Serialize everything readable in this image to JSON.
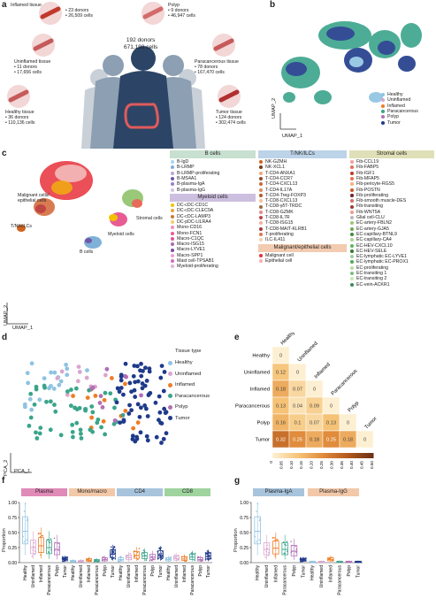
{
  "panel_letters": [
    "a",
    "b",
    "c",
    "d",
    "e",
    "f",
    "g"
  ],
  "panel_a": {
    "center": {
      "donors": "192 donors",
      "cells": "671,192 cells"
    },
    "tissues": [
      {
        "title": "Inflamed tissue",
        "donors": "23 donors",
        "cells": "26,509 cells",
        "color": "#c0392b"
      },
      {
        "title": "Polyp",
        "donors": "9 donors",
        "cells": "46,947 cells",
        "color": "#d36b6b"
      },
      {
        "title": "Uninflamed tissue",
        "donors": "11 donors",
        "cells": "17,656 cells",
        "color": "#c65a5a"
      },
      {
        "title": "Paracancerous tissue",
        "donors": "78 donors",
        "cells": "167,470 cells",
        "color": "#c65a5a"
      },
      {
        "title": "Healthy tissue",
        "donors": "36 donors",
        "cells": "110,136 cells",
        "color": "#c65a5a"
      },
      {
        "title": "Tumor tissue",
        "donors": "124 donors",
        "cells": "302,474 cells",
        "color": "#b03030"
      }
    ]
  },
  "panel_b": {
    "xlabel": "UMAP_1",
    "ylabel": "UMAP_2",
    "legend": [
      {
        "label": "Healthy",
        "color": "#8fc3e2"
      },
      {
        "label": "Uninflamed",
        "color": "#d9a6cf"
      },
      {
        "label": "Inflamed",
        "color": "#f07c25"
      },
      {
        "label": "Paracancerous",
        "color": "#3aa48a"
      },
      {
        "label": "Polyp",
        "color": "#b16fb6"
      },
      {
        "label": "Tumor",
        "color": "#1f3a8a"
      }
    ]
  },
  "panel_c": {
    "xlabel": "UMAP_1",
    "ylabel": "UMAP_2",
    "cluster_labels": {
      "malignant": "Malignant cells/ epithelial cells",
      "tnk": "T/NK/ILCs",
      "myeloid": "Myeloid cells",
      "stromal": "Stromal cells",
      "bcells": "B cells"
    },
    "groups": [
      {
        "title": "B cells",
        "color": "#c8e0cf",
        "items": [
          {
            "label": "B-IgD",
            "color": "#a8d6f0"
          },
          {
            "label": "B-LRMP",
            "color": "#7fb0d8"
          },
          {
            "label": "B-LRMP-proliferating",
            "color": "#b9a7d6"
          },
          {
            "label": "B-MS4A1",
            "color": "#6e59a8"
          },
          {
            "label": "B-plasma-IgA",
            "color": "#9c82c4"
          },
          {
            "label": "B-plasma-IgG",
            "color": "#d6c3e6"
          }
        ]
      },
      {
        "title": "Myeloid cells",
        "color": "#cdbfdf",
        "items": [
          {
            "label": "DC-cDC-CD1C",
            "color": "#f2c200"
          },
          {
            "label": "DC-cDC-CLEC9A",
            "color": "#e7a73a"
          },
          {
            "label": "DC-cDC-LAMP3",
            "color": "#c97b33"
          },
          {
            "label": "DC-pDC-LILRA4",
            "color": "#efd06a"
          },
          {
            "label": "Mono-CD16",
            "color": "#f28fbb"
          },
          {
            "label": "Mono-FCN1",
            "color": "#e85c94"
          },
          {
            "label": "Macro-C1QC",
            "color": "#d9579a"
          },
          {
            "label": "Macro-ISG15",
            "color": "#a86bb3"
          },
          {
            "label": "Macro-LYVE1",
            "color": "#7a4ea0"
          },
          {
            "label": "Macro-SPP1",
            "color": "#f2a0c8"
          },
          {
            "label": "Mast cell-TPSAB1",
            "color": "#cf6fbd"
          },
          {
            "label": "Myeloid-proliferating",
            "color": "#e0b3d8"
          }
        ]
      },
      {
        "title": "T/NK/ILCs",
        "color": "#bcd3e8",
        "items": [
          {
            "label": "NK-GZMH",
            "color": "#d0641f"
          },
          {
            "label": "NK-XCL1",
            "color": "#7a3b16"
          },
          {
            "label": "T-CD4-ANXA1",
            "color": "#f1a77a"
          },
          {
            "label": "T-CD4-CCR7",
            "color": "#8a4b2a"
          },
          {
            "label": "T-CD4-CXCL13",
            "color": "#c96a3a"
          },
          {
            "label": "T-CD4-IL17A",
            "color": "#e08a5a"
          },
          {
            "label": "T-CD4-Treg-FOXP3",
            "color": "#b55a2a"
          },
          {
            "label": "T-CD8-CXCL13",
            "color": "#f4c09a"
          },
          {
            "label": "T-CD8-γδT-TRDC",
            "color": "#9e6a3a"
          },
          {
            "label": "T-CD8-GZMK",
            "color": "#e38a8a"
          },
          {
            "label": "T-CD8-IL7R",
            "color": "#c04545"
          },
          {
            "label": "T-CD8-ISG15",
            "color": "#f0b0a0"
          },
          {
            "label": "T-CD8-MAIT-KLRB1",
            "color": "#a33a3a"
          },
          {
            "label": "T-proliferating",
            "color": "#d97b50"
          },
          {
            "label": "ILC-IL411",
            "color": "#f4d2b0"
          }
        ]
      },
      {
        "title": "Malignant/epithelial cells",
        "color": "#f2cbb0",
        "items": [
          {
            "label": "Malignant cell",
            "color": "#e7303a"
          },
          {
            "label": "Epithelial cell",
            "color": "#f3b0b0"
          }
        ]
      },
      {
        "title": "Stromal cells",
        "color": "#e0e0b8",
        "items": [
          {
            "label": "Fib-CCL19",
            "color": "#f0a09a"
          },
          {
            "label": "Fib-FABP5",
            "color": "#e86a5a"
          },
          {
            "label": "Fib-IGF1",
            "color": "#c0392b"
          },
          {
            "label": "Fib-MFAP5",
            "color": "#e87050"
          },
          {
            "label": "Fib-pericyte-RGS5",
            "color": "#f4b07a"
          },
          {
            "label": "Fib-POSTN",
            "color": "#c8562a"
          },
          {
            "label": "Fib-proliferating",
            "color": "#7a1f1f"
          },
          {
            "label": "Fib-smooth muscle-DES",
            "color": "#d86a6a"
          },
          {
            "label": "Fib-transiting",
            "color": "#9a3a3a"
          },
          {
            "label": "Fib-WNT5A",
            "color": "#f29a8a"
          },
          {
            "label": "Glial cell-CLU",
            "color": "#b8b8b8"
          },
          {
            "label": "EC-artery-FBLN2",
            "color": "#98c878"
          },
          {
            "label": "EC-artery-GJA5",
            "color": "#6aa84f"
          },
          {
            "label": "EC-capillary-BTNL9",
            "color": "#3f8f3f"
          },
          {
            "label": "EC-capillary-CA4",
            "color": "#a8d88a"
          },
          {
            "label": "EC-HEV-CXCL10",
            "color": "#5cb85c"
          },
          {
            "label": "EC-HEV-SELE",
            "color": "#2f7a2f"
          },
          {
            "label": "EC-lymphatic EC-LYVE1",
            "color": "#9ad09a"
          },
          {
            "label": "EC-lymphatic EC-PROX1",
            "color": "#4caf50"
          },
          {
            "label": "EC-proliferating",
            "color": "#b5e0a0"
          },
          {
            "label": "EC-transiting 1",
            "color": "#7bc07b"
          },
          {
            "label": "EC-transiting 2",
            "color": "#c8e6b0"
          },
          {
            "label": "EC-vein-ACKR1",
            "color": "#3b8a5a"
          }
        ]
      }
    ]
  },
  "panel_d": {
    "xlabel": "PCA_1",
    "ylabel": "PCA_2",
    "legend_title": "Tissue type",
    "legend": [
      {
        "label": "Healthy",
        "color": "#8fc3e2"
      },
      {
        "label": "Uninflamed",
        "color": "#d9a6cf"
      },
      {
        "label": "Inflamed",
        "color": "#f07c25"
      },
      {
        "label": "Paracancerous",
        "color": "#3aa48a"
      },
      {
        "label": "Polyp",
        "color": "#b16fb6"
      },
      {
        "label": "Tumor",
        "color": "#1f3a8a"
      }
    ]
  },
  "chart_data": [
    {
      "type": "heatmap",
      "categories": [
        "Healthy",
        "Uninflamed",
        "Inflamed",
        "Paracancerous",
        "Polyp",
        "Tumor"
      ],
      "cells": [
        {
          "row": "Healthy",
          "col": "Healthy",
          "value": 0
        },
        {
          "row": "Uninflamed",
          "col": "Healthy",
          "value": 0.12
        },
        {
          "row": "Uninflamed",
          "col": "Uninflamed",
          "value": 0
        },
        {
          "row": "Inflamed",
          "col": "Healthy",
          "value": 0.18
        },
        {
          "row": "Inflamed",
          "col": "Uninflamed",
          "value": 0.07
        },
        {
          "row": "Inflamed",
          "col": "Inflamed",
          "value": 0
        },
        {
          "row": "Paracancerous",
          "col": "Healthy",
          "value": 0.13
        },
        {
          "row": "Paracancerous",
          "col": "Uninflamed",
          "value": 0.04
        },
        {
          "row": "Paracancerous",
          "col": "Inflamed",
          "value": 0.09
        },
        {
          "row": "Paracancerous",
          "col": "Paracancerous",
          "value": 0
        },
        {
          "row": "Polyp",
          "col": "Healthy",
          "value": 0.16
        },
        {
          "row": "Polyp",
          "col": "Uninflamed",
          "value": 0.1
        },
        {
          "row": "Polyp",
          "col": "Inflamed",
          "value": 0.07
        },
        {
          "row": "Polyp",
          "col": "Paracancerous",
          "value": 0.13
        },
        {
          "row": "Polyp",
          "col": "Polyp",
          "value": 0
        },
        {
          "row": "Tumor",
          "col": "Healthy",
          "value": 0.32
        },
        {
          "row": "Tumor",
          "col": "Uninflamed",
          "value": 0.25
        },
        {
          "row": "Tumor",
          "col": "Inflamed",
          "value": 0.18
        },
        {
          "row": "Tumor",
          "col": "Paracancerous",
          "value": 0.25
        },
        {
          "row": "Tumor",
          "col": "Polyp",
          "value": 0.18
        },
        {
          "row": "Tumor",
          "col": "Tumor",
          "value": 0
        }
      ],
      "colorbar_label": "Distance",
      "colorbar_ticks": [
        "0",
        "0.05",
        "0.10",
        "0.15",
        "0.20",
        "0.25",
        "0.30",
        "0.35",
        "0.40",
        "0.45",
        "0.50"
      ]
    },
    {
      "type": "box",
      "ylabel": "Proportion",
      "groups": [
        {
          "name": "Plasma",
          "color": "#e08ab8"
        },
        {
          "name": "Mono/macro",
          "color": "#f2c8a8"
        },
        {
          "name": "CD4",
          "color": "#a8c4dc"
        },
        {
          "name": "CD8",
          "color": "#9fd49f"
        }
      ],
      "categories": [
        "Healthy",
        "Uninflamed",
        "Inflamed",
        "Paracancerous",
        "Polyp",
        "Tumor"
      ],
      "medians": {
        "Plasma": [
          0.52,
          0.25,
          0.28,
          0.25,
          0.22,
          0.05
        ],
        "Mono/macro": [
          0.02,
          0.02,
          0.04,
          0.03,
          0.05,
          0.14
        ],
        "CD4": [
          0.05,
          0.08,
          0.12,
          0.11,
          0.09,
          0.13
        ],
        "CD8": [
          0.05,
          0.07,
          0.06,
          0.09,
          0.05,
          0.1
        ]
      }
    },
    {
      "type": "box",
      "ylabel": "Proportion",
      "groups": [
        {
          "name": "Plasma-IgA",
          "color": "#a8c4dc"
        },
        {
          "name": "Plasma-IgG",
          "color": "#f2c8a8"
        }
      ],
      "categories": [
        "Healthy",
        "Uninflamed",
        "Inflamed",
        "Paracancerous",
        "Polyp",
        "Tumor"
      ],
      "medians": {
        "Plasma-IgA": [
          0.52,
          0.22,
          0.24,
          0.22,
          0.19,
          0.04
        ],
        "Plasma-IgG": [
          0.01,
          0.01,
          0.05,
          0.01,
          0.01,
          0.01
        ]
      }
    }
  ],
  "colors": {
    "healthy": "#8fc3e2",
    "uninflamed": "#d9a6cf",
    "inflamed": "#f07c25",
    "paracancerous": "#3aa48a",
    "polyp": "#b16fb6",
    "tumor": "#1f3a8a"
  }
}
